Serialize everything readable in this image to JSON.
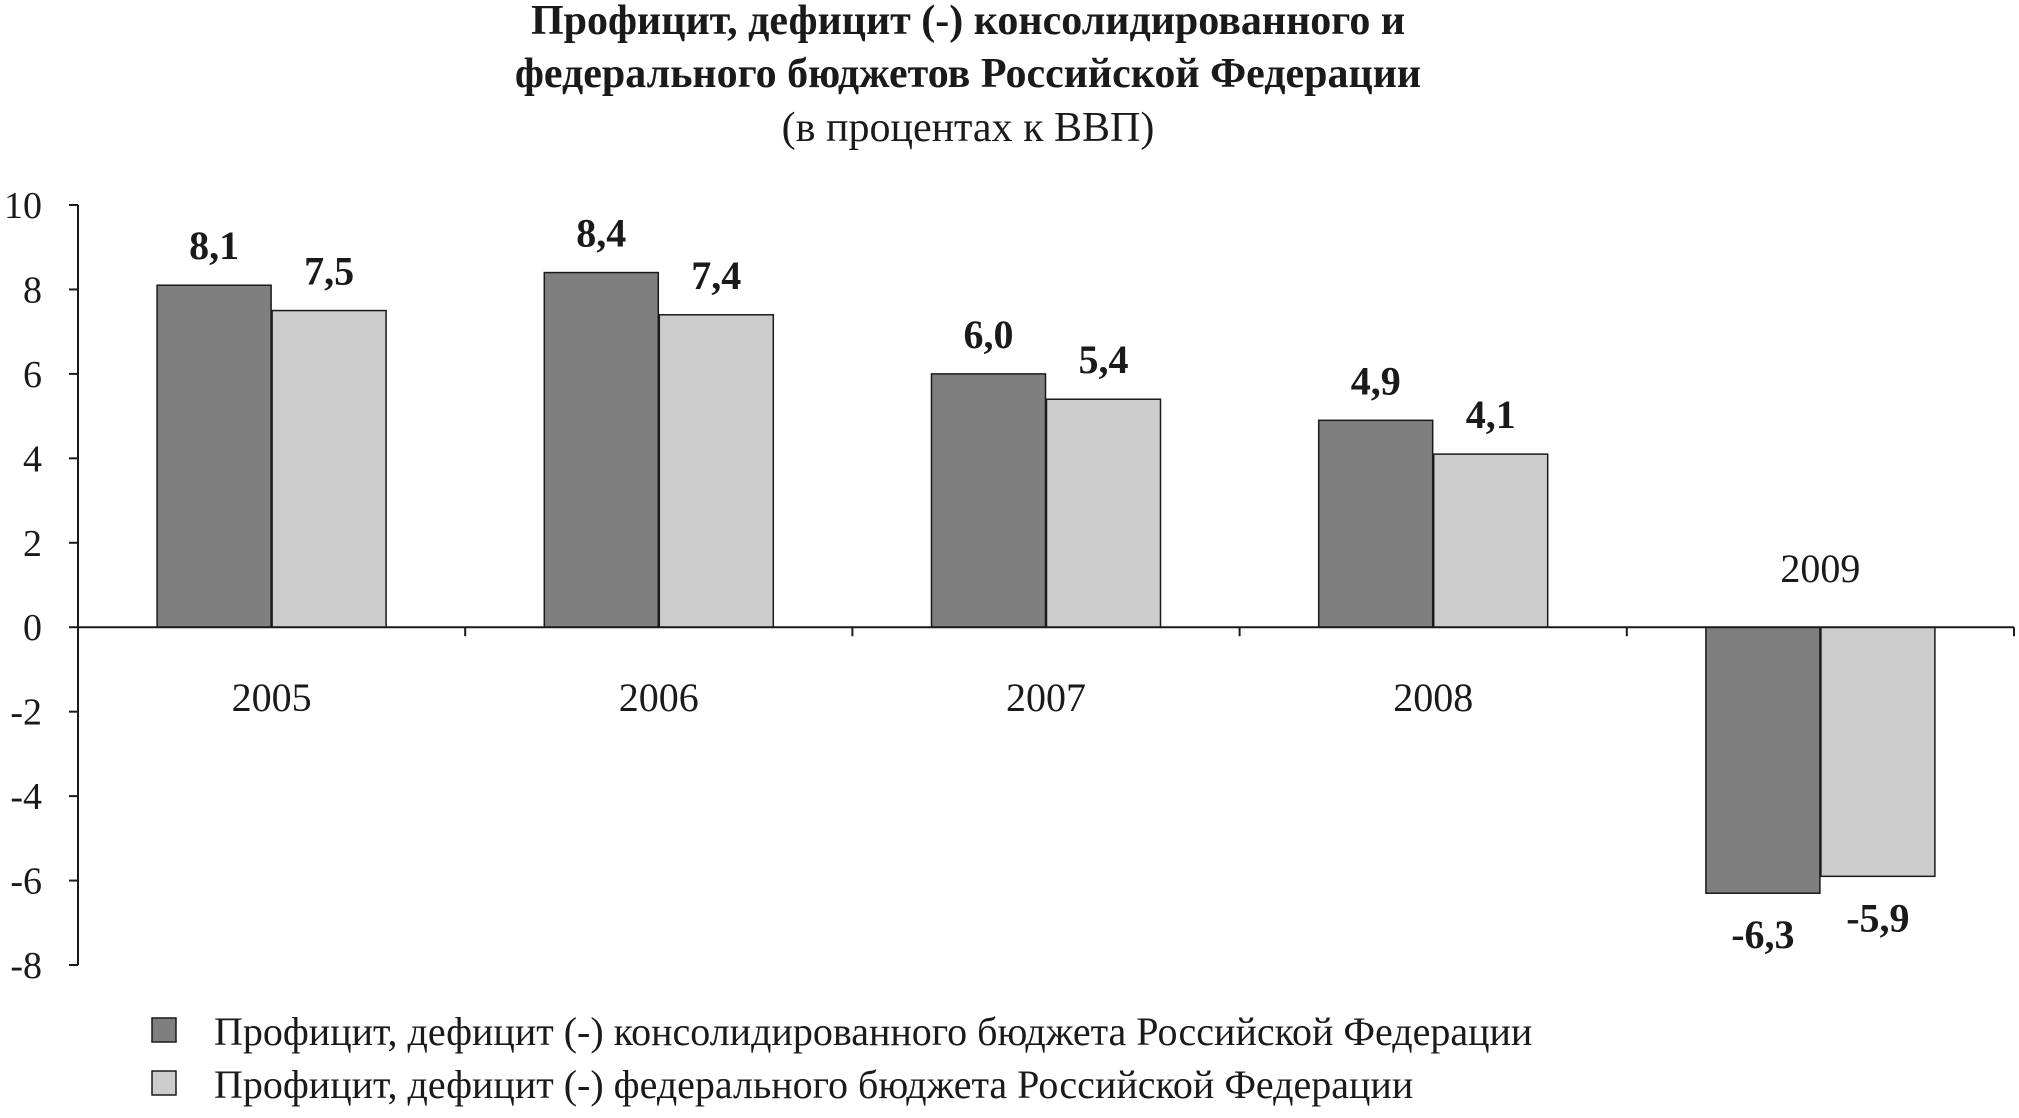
{
  "chart_data": {
    "type": "bar",
    "title": "Профицит, дефицит (-) консолидированного и федерального бюджетов Российской Федерации",
    "title_lines": [
      "Профицит, дефицит (-) консолидированного и",
      "федерального бюджетов Российской Федерации"
    ],
    "subtitle": "(в процентах к ВВП)",
    "xlabel": "",
    "ylabel": "",
    "categories": [
      "2005",
      "2006",
      "2007",
      "2008",
      "2009"
    ],
    "series": [
      {
        "name": "Профицит, дефицит (-) консолидированного бюджета Российской Федерации",
        "values": [
          8.1,
          8.4,
          6.0,
          4.9,
          -6.3
        ],
        "labels": [
          "8,1",
          "8,4",
          "6,0",
          "4,9",
          "-6,3"
        ],
        "color": "#7f7f7f"
      },
      {
        "name": "Профицит, дефицит (-) федерального бюджета Российской Федерации",
        "values": [
          7.5,
          7.4,
          5.4,
          4.1,
          -5.9
        ],
        "labels": [
          "7,5",
          "7,4",
          "5,4",
          "4,1",
          "-5,9"
        ],
        "color": "#cccccc"
      }
    ],
    "ylim": [
      -8,
      10
    ],
    "yticks": [
      10,
      8,
      6,
      4,
      2,
      0,
      -2,
      -4,
      -6,
      -8
    ],
    "ytick_labels": [
      "10",
      "8",
      "6",
      "4",
      "2",
      "0",
      "-2",
      "-4",
      "-6",
      "-8"
    ],
    "grid": false,
    "legend_position": "bottom-left"
  }
}
